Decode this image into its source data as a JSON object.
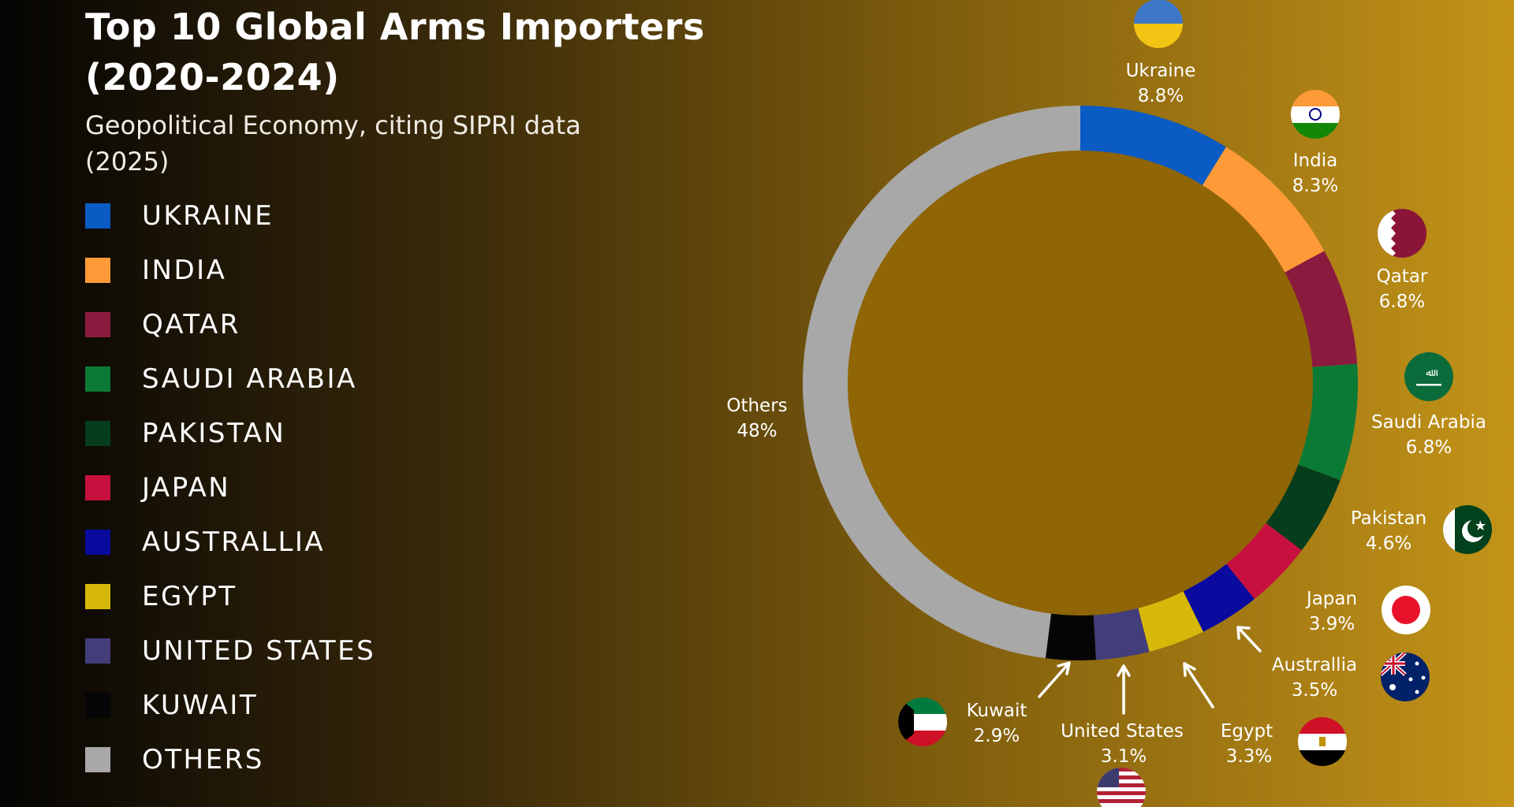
{
  "chart_data": {
    "type": "pie",
    "variant": "donut",
    "title": "Top 10 Global Arms Importers (2020-2024)",
    "subtitle": "Geopolitical Economy, citing SIPRI data (2025)",
    "legend_placement": "left",
    "slices": [
      {
        "legend": "UKRAINE",
        "label": "Ukraine",
        "value": 8.8,
        "pct_label": "8.8%",
        "color": "#0a5bc4",
        "flag": "ukraine-flag-icon"
      },
      {
        "legend": "INDIA",
        "label": "India",
        "value": 8.3,
        "pct_label": "8.3%",
        "color": "#ff9a38",
        "flag": "india-flag-icon"
      },
      {
        "legend": "QATAR",
        "label": "Qatar",
        "value": 6.8,
        "pct_label": "6.8%",
        "color": "#8a1a3e",
        "flag": "qatar-flag-icon"
      },
      {
        "legend": "SAUDI ARABIA",
        "label": "Saudi Arabia",
        "value": 6.8,
        "pct_label": "6.8%",
        "color": "#0a7a35",
        "flag": "saudi-arabia-flag-icon"
      },
      {
        "legend": "PAKISTAN",
        "label": "Pakistan",
        "value": 4.6,
        "pct_label": "4.6%",
        "color": "#063d1c",
        "flag": "pakistan-flag-icon"
      },
      {
        "legend": "JAPAN",
        "label": "Japan",
        "value": 3.9,
        "pct_label": "3.9%",
        "color": "#c8103e",
        "flag": "japan-flag-icon"
      },
      {
        "legend": "AUSTRALLIA",
        "label": "Australlia",
        "value": 3.5,
        "pct_label": "3.5%",
        "color": "#0a0a9e",
        "flag": "australia-flag-icon"
      },
      {
        "legend": "EGYPT",
        "label": "Egypt",
        "value": 3.3,
        "pct_label": "3.3%",
        "color": "#d6b80a",
        "flag": "egypt-flag-icon"
      },
      {
        "legend": "UNITED STATES",
        "label": "United States",
        "value": 3.1,
        "pct_label": "3.1%",
        "color": "#433d7a",
        "flag": "united-states-flag-icon"
      },
      {
        "legend": "KUWAIT",
        "label": "Kuwait",
        "value": 2.9,
        "pct_label": "2.9%",
        "color": "#050505",
        "flag": "kuwait-flag-icon"
      },
      {
        "legend": "OTHERS",
        "label": "Others",
        "value": 48,
        "pct_label": "48%",
        "color": "#a8a8a8",
        "flag": ""
      }
    ]
  }
}
